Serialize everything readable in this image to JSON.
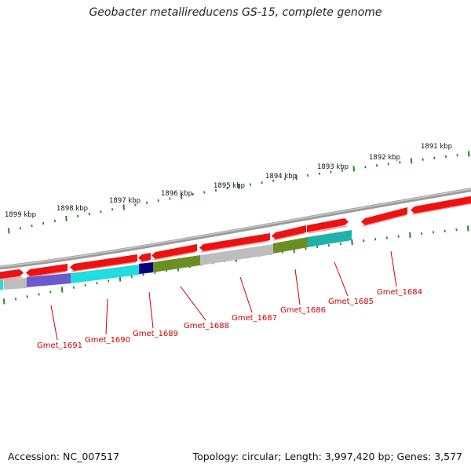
{
  "title": "Geobacter metallireducens GS-15, complete genome",
  "footer": {
    "accession": "Accession: NC_007517",
    "summary": "Topology: circular; Length: 3,997,420 bp; Genes: 3,577"
  },
  "colors": {
    "backbone": "#8a8a8a",
    "forward_gene": "#ee1111",
    "reverse_gene_gray": "#bdbdbd",
    "reverse_gene_olive": "#6b8e23",
    "reverse_gene_cyan": "#22dddd",
    "reverse_gene_teal": "#20b2aa",
    "reverse_gene_slate": "#6a5acd",
    "reverse_gene_navy": "#000080",
    "tick": "#228822",
    "gene_label": "#cc0000"
  },
  "ruler_labels": [
    "1891 kbp",
    "1892 kbp",
    "1893 kbp",
    "1894 kbp",
    "1895 kbp",
    "1896 kbp",
    "1897 kbp",
    "1898 kbp",
    "1899 kbp"
  ],
  "gene_labels": [
    "Gmet_1684",
    "Gmet_1685",
    "Gmet_1686",
    "Gmet_1687",
    "Gmet_1688",
    "Gmet_1689",
    "Gmet_1690",
    "Gmet_1691"
  ]
}
